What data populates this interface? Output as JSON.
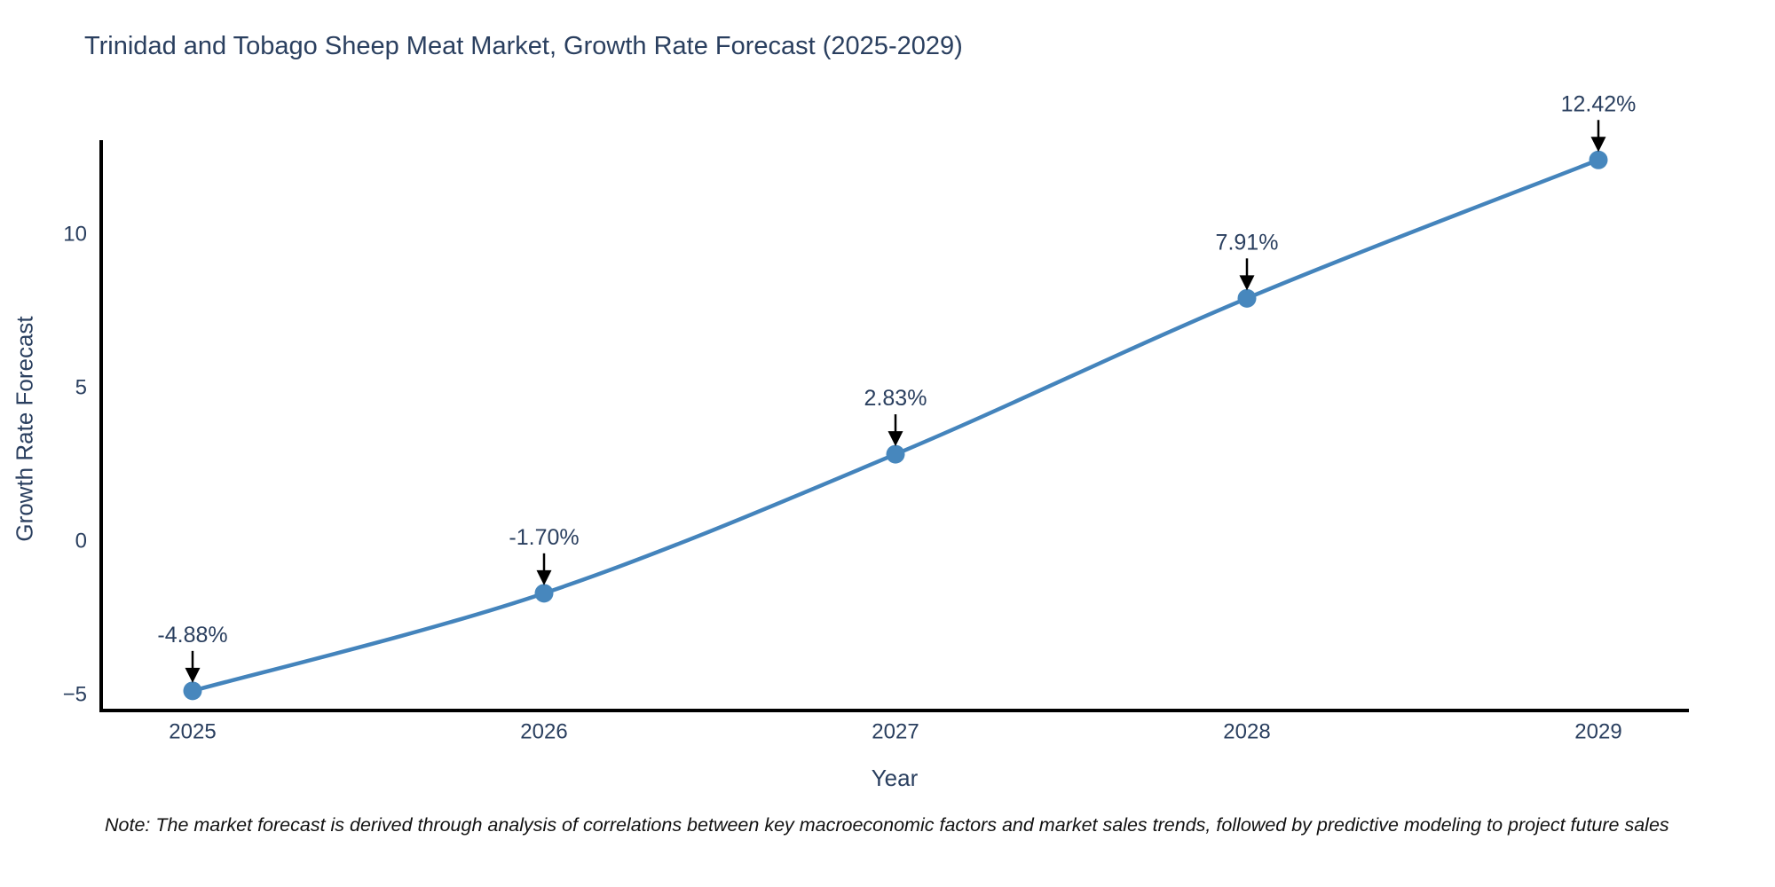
{
  "page": {
    "background": "#ffffff"
  },
  "chart_data": {
    "type": "line",
    "title": "Trinidad and Tobago Sheep Meat Market, Growth Rate Forecast (2025-2029)",
    "xlabel": "Year",
    "ylabel": "Growth Rate Forecast",
    "categories": [
      2025,
      2026,
      2027,
      2028,
      2029
    ],
    "x_tick_labels": [
      "2025",
      "2026",
      "2027",
      "2028",
      "2029"
    ],
    "values": [
      -4.88,
      -1.7,
      2.83,
      7.91,
      12.42
    ],
    "point_labels": [
      "-4.88%",
      "-1.70%",
      "2.83%",
      "7.91%",
      "12.42%"
    ],
    "y_ticks": [
      {
        "value": 10,
        "label": "10"
      },
      {
        "value": 5,
        "label": "5"
      },
      {
        "value": 0,
        "label": "0"
      },
      {
        "value": -5,
        "label": "−5"
      }
    ],
    "ylim": [
      -5.5,
      13.1
    ],
    "grid": false,
    "legend_position": "none",
    "line_color": "#4484bc",
    "marker_color": "#4787bd",
    "axis_color": "#000000",
    "text_color": "#2a3f5f",
    "annotation_text_color": "#2a3f5f",
    "annotation_arrow_color": "#000000"
  },
  "note": {
    "text": "Note: The market forecast is derived through analysis of correlations between key macroeconomic factors and market sales trends, followed by predictive modeling to project future sales"
  }
}
